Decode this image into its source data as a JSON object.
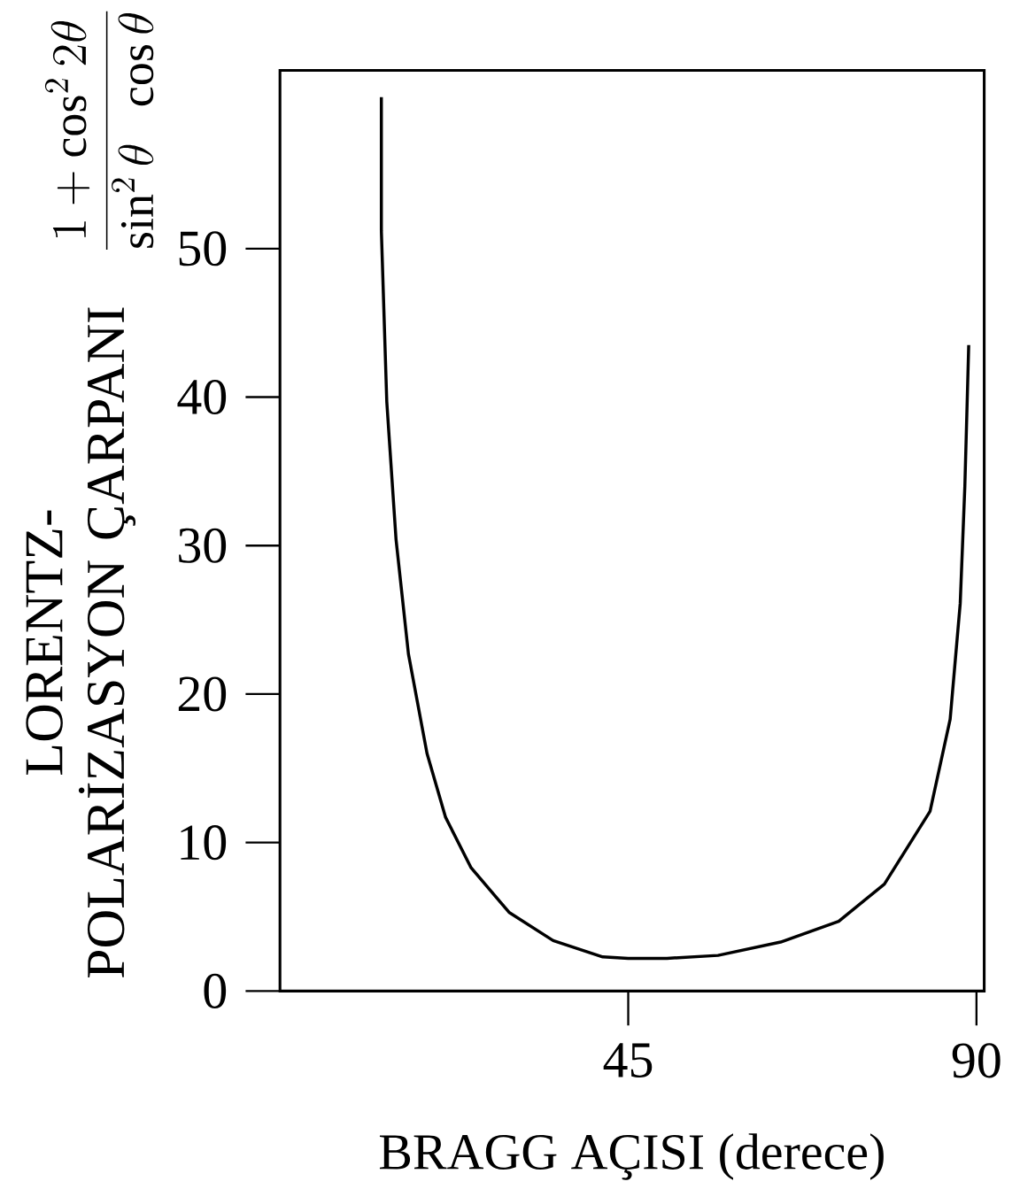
{
  "chart_data": {
    "type": "line",
    "xlabel": "BRAGG AÇISI (derece)",
    "ylabel": "LORENTZ-POLARİZASYON ÇARPANI",
    "annotations": [
      "\\frac{1+\\cos^2 2\\theta}{\\sin^2\\theta\\;\\;\\cos\\theta}"
    ],
    "x": [
      13.1,
      13.1,
      13.8,
      15.0,
      16.6,
      19.0,
      21.4,
      24.7,
      29.6,
      35.3,
      41.7,
      45,
      50,
      56.6,
      64.7,
      72.2,
      78.1,
      84.0,
      86.6,
      87.9,
      88.5,
      89.0
    ],
    "values": [
      60.2,
      51.2,
      39.7,
      30.4,
      22.7,
      16.0,
      11.7,
      8.3,
      5.3,
      3.4,
      2.3,
      2.2,
      2.2,
      2.4,
      3.3,
      4.7,
      7.2,
      12.1,
      18.3,
      26.1,
      34.0,
      43.5
    ],
    "color": "#000000",
    "xlim": [
      0,
      91
    ],
    "ylim": [
      0,
      62
    ],
    "xticks": [
      45,
      90
    ],
    "yticks": [
      0,
      10,
      20,
      30,
      40,
      50
    ],
    "grid": false,
    "marker": "none",
    "line_style": "solid"
  }
}
